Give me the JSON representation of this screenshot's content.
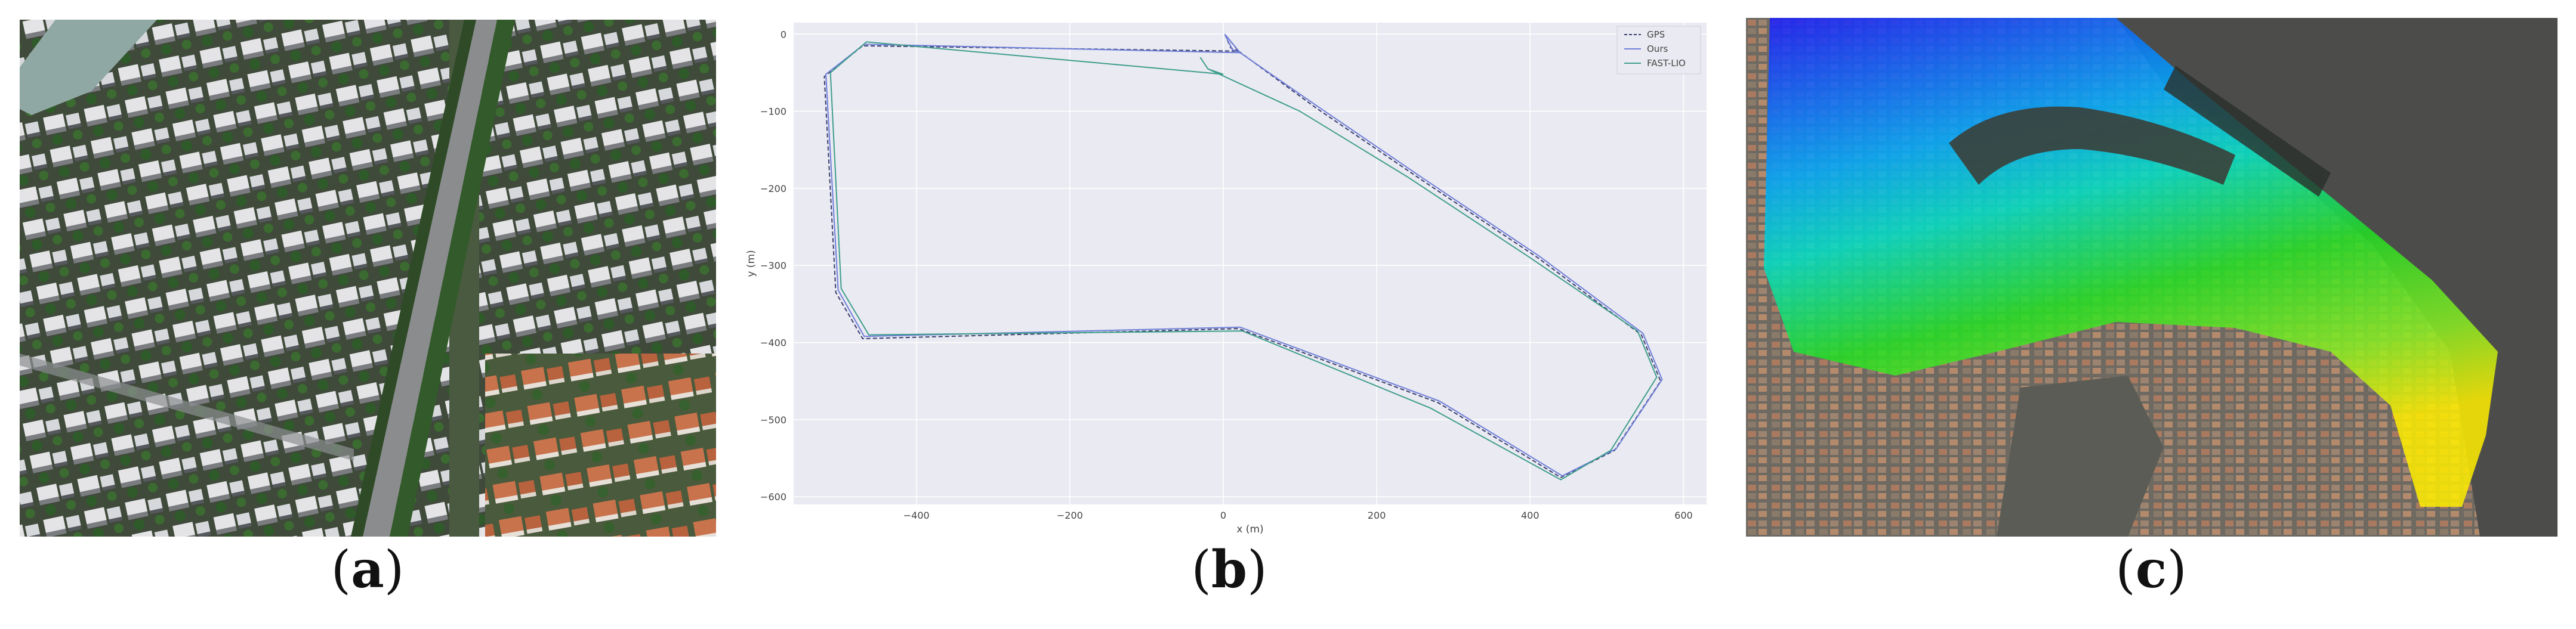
{
  "captions": {
    "a": "a",
    "b": "b",
    "c": "c"
  },
  "panel_b": {
    "legend": [
      "GPS",
      "Ours",
      "FAST-LIO"
    ],
    "xlabel": "x (m)",
    "ylabel": "y (m)",
    "xticks": [
      "−400",
      "−200",
      "0",
      "200",
      "400",
      "600"
    ],
    "yticks": [
      "0",
      "−100",
      "−200",
      "−300",
      "−400",
      "−500",
      "−600"
    ]
  },
  "colors": {
    "gps": "#3b3f6e",
    "ours": "#6f7fd8",
    "fastlio": "#3f9e8c",
    "plot_bg": "#eaeaf2"
  },
  "chart_data": {
    "type": "line",
    "xlabel": "x (m)",
    "ylabel": "y (m)",
    "xlim": [
      -560,
      630
    ],
    "ylim": [
      -610,
      15
    ],
    "grid": true,
    "legend_position": "top-right",
    "series": [
      {
        "name": "GPS",
        "style": "dashed",
        "points": [
          [
            2,
            0
          ],
          [
            10,
            -18
          ],
          [
            20,
            -22
          ],
          [
            -470,
            -15
          ],
          [
            -520,
            -55
          ],
          [
            -505,
            -335
          ],
          [
            -470,
            -395
          ],
          [
            20,
            -382
          ],
          [
            280,
            -478
          ],
          [
            440,
            -575
          ],
          [
            510,
            -540
          ],
          [
            570,
            -450
          ],
          [
            545,
            -390
          ],
          [
            410,
            -290
          ],
          [
            260,
            -190
          ],
          [
            120,
            -95
          ],
          [
            20,
            -22
          ],
          [
            2,
            0
          ]
        ]
      },
      {
        "name": "Ours",
        "style": "solid",
        "points": [
          [
            2,
            0
          ],
          [
            12,
            -20
          ],
          [
            22,
            -24
          ],
          [
            -468,
            -13
          ],
          [
            -518,
            -52
          ],
          [
            -502,
            -332
          ],
          [
            -468,
            -392
          ],
          [
            22,
            -380
          ],
          [
            282,
            -476
          ],
          [
            442,
            -573
          ],
          [
            512,
            -538
          ],
          [
            572,
            -448
          ],
          [
            547,
            -388
          ],
          [
            412,
            -288
          ],
          [
            262,
            -188
          ],
          [
            122,
            -93
          ],
          [
            22,
            -24
          ],
          [
            2,
            0
          ]
        ]
      },
      {
        "name": "FAST-LIO",
        "style": "solid",
        "points": [
          [
            -30,
            -30
          ],
          [
            -20,
            -45
          ],
          [
            0,
            -52
          ],
          [
            -465,
            -10
          ],
          [
            -512,
            -50
          ],
          [
            -498,
            -330
          ],
          [
            -462,
            -390
          ],
          [
            25,
            -385
          ],
          [
            270,
            -485
          ],
          [
            440,
            -578
          ],
          [
            505,
            -540
          ],
          [
            565,
            -445
          ],
          [
            540,
            -385
          ],
          [
            400,
            -290
          ],
          [
            240,
            -185
          ],
          [
            100,
            -100
          ],
          [
            -20,
            -45
          ]
        ]
      }
    ]
  }
}
